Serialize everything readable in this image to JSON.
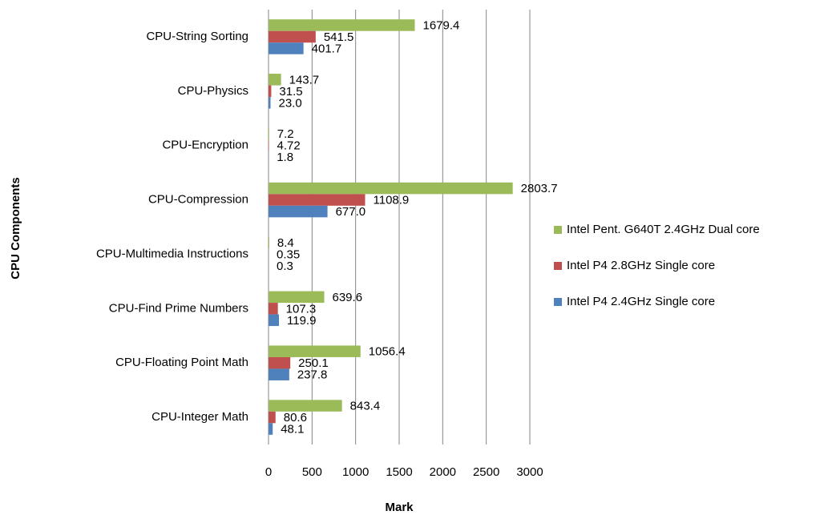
{
  "chart_data": {
    "type": "bar",
    "orientation": "horizontal",
    "x_label": "Mark",
    "y_label": "CPU Components",
    "categories": [
      "CPU-String Sorting",
      "CPU-Physics",
      "CPU-Encryption",
      "CPU-Compression",
      "CPU-Multimedia Instructions",
      "CPU-Find Prime Numbers",
      "CPU-Floating Point Math",
      "CPU-Integer Math"
    ],
    "series": [
      {
        "name": "Intel Pent. G640T 2.4GHz Dual core",
        "color": "#9bbb59",
        "values": [
          1679.4,
          143.7,
          7.2,
          2803.7,
          8.4,
          639.6,
          1056.4,
          843.4
        ],
        "value_labels": [
          "1679.4",
          "143.7",
          "7.2",
          "2803.7",
          "8.4",
          "639.6",
          "1056.4",
          "843.4"
        ]
      },
      {
        "name": "Intel P4 2.8GHz Single core",
        "color": "#c0504d",
        "values": [
          541.5,
          31.5,
          4.72,
          1108.9,
          0.35,
          107.3,
          250.1,
          80.6
        ],
        "value_labels": [
          "541.5",
          "31.5",
          "4.72",
          "1108.9",
          "0.35",
          "107.3",
          "250.1",
          "80.6"
        ]
      },
      {
        "name": "Intel P4 2.4GHz Single core",
        "color": "#4f81bd",
        "values": [
          401.7,
          23.0,
          1.8,
          677.0,
          0.3,
          119.9,
          237.8,
          48.1
        ],
        "value_labels": [
          "401.7",
          "23.0",
          "1.8",
          "677.0",
          "0.3",
          "119.9",
          "237.8",
          "48.1"
        ]
      }
    ],
    "xlim": [
      0,
      3000
    ],
    "xticks": [
      0,
      500,
      1000,
      1500,
      2000,
      2500,
      3000
    ],
    "grid": true,
    "legend": "right"
  }
}
